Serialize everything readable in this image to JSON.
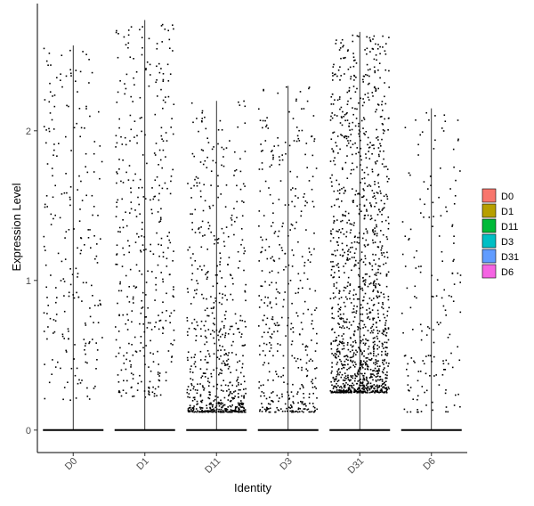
{
  "chart_data": {
    "type": "violin-jitter",
    "xlabel": "Identity",
    "ylabel": "Expression Level",
    "categories": [
      "D0",
      "D1",
      "D11",
      "D3",
      "D31",
      "D6"
    ],
    "ylim": [
      -0.15,
      2.85
    ],
    "yticks": [
      0,
      1,
      2
    ],
    "violin_max": [
      2.57,
      2.74,
      2.2,
      2.3,
      2.66,
      2.15
    ],
    "jitter_points": [
      {
        "name": "D0",
        "count": 230,
        "min": 0.2,
        "max": 2.55,
        "skew": 1.4
      },
      {
        "name": "D1",
        "count": 390,
        "min": 0.22,
        "max": 2.73,
        "skew": 1.3
      },
      {
        "name": "D11",
        "count": 650,
        "min": 0.12,
        "max": 2.2,
        "skew": 2.6
      },
      {
        "name": "D3",
        "count": 420,
        "min": 0.12,
        "max": 2.3,
        "skew": 1.9
      },
      {
        "name": "D31",
        "count": 1350,
        "min": 0.25,
        "max": 2.64,
        "skew": 2.1
      },
      {
        "name": "D6",
        "count": 170,
        "min": 0.12,
        "max": 2.13,
        "skew": 1.4
      }
    ],
    "legend": {
      "position": "right",
      "entries": [
        {
          "label": "D0",
          "color": "#F8766D"
        },
        {
          "label": "D1",
          "color": "#B79F00"
        },
        {
          "label": "D11",
          "color": "#00BA38"
        },
        {
          "label": "D3",
          "color": "#00BFC4"
        },
        {
          "label": "D31",
          "color": "#619CFF"
        },
        {
          "label": "D6",
          "color": "#F564E3"
        }
      ]
    },
    "grid": false
  }
}
